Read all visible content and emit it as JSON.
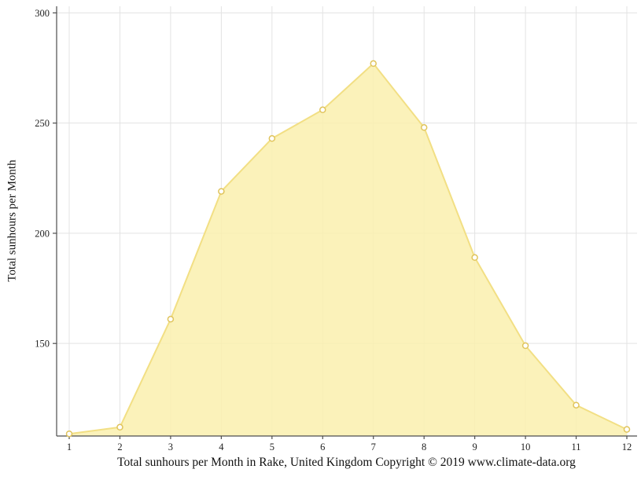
{
  "page": {
    "background": "#ffffff"
  },
  "chart_data": {
    "type": "area",
    "x": [
      1,
      2,
      3,
      4,
      5,
      6,
      7,
      8,
      9,
      10,
      11,
      12
    ],
    "values": [
      109,
      112,
      161,
      219,
      243,
      256,
      277,
      248,
      189,
      149,
      122,
      111
    ],
    "series_name": "Total sunhours",
    "title": "Total sunhours per Month in Rake, United Kingdom Copyright © 2019 www.climate-data.org",
    "xlabel": "",
    "ylabel": "Total sunhours per Month",
    "ylim": [
      108,
      303
    ],
    "yticks": [
      150,
      200,
      250,
      300
    ],
    "xticks": [
      1,
      2,
      3,
      4,
      5,
      6,
      7,
      8,
      9,
      10,
      11,
      12
    ],
    "grid": true,
    "legend": "none",
    "colors": {
      "area_fill": "#FAF0AE",
      "line": "#F2DF84",
      "marker_fill": "#FFFFFF",
      "marker_stroke": "#E0C45C",
      "grid": "#E3E3E3",
      "axis": "#4D4D4D",
      "tick_text": "#222222",
      "title_text": "#111111"
    }
  }
}
